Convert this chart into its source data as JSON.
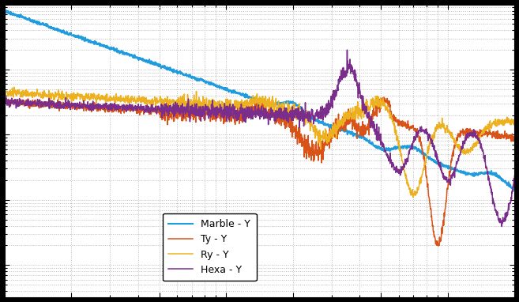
{
  "legend_entries": [
    "Marble - Y",
    "Ty - Y",
    "Ry - Y",
    "Hexa - Y"
  ],
  "colors": {
    "marble": "#1f9bde",
    "ty": "#d95319",
    "ry": "#edb120",
    "hexa": "#7b2d8b"
  },
  "background_color": "#ffffff",
  "fig_color": "#000000",
  "grid_color": "#bbbbbb",
  "xlim": [
    1,
    200
  ],
  "ylim_lo": -7.5,
  "ylim_hi": -3.0,
  "seed": 77
}
